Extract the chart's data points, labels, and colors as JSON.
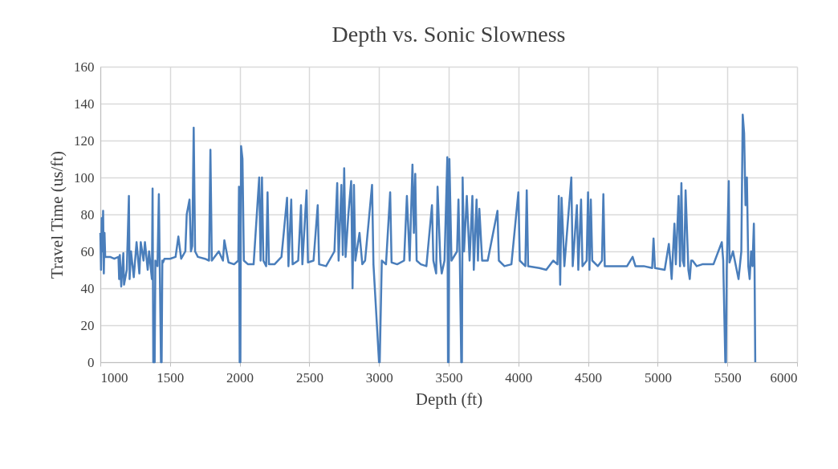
{
  "chart_data": {
    "type": "line",
    "title": "Depth vs. Sonic Slowness",
    "xlabel": "Depth (ft)",
    "ylabel": "Travel Time (us/ft)",
    "xlim": [
      1000,
      6000
    ],
    "xticks": [
      {
        "value": 1000,
        "label": "1000"
      },
      {
        "value": 1500,
        "label": "1500"
      },
      {
        "value": 2000,
        "label": "2000"
      },
      {
        "value": 2500,
        "label": "2500"
      },
      {
        "value": 3000,
        "label": "3000"
      },
      {
        "value": 3500,
        "label": "3500"
      },
      {
        "value": 4000,
        "label": "4000"
      },
      {
        "value": 4500,
        "label": "4500"
      },
      {
        "value": 5000,
        "label": "5000"
      },
      {
        "value": 5500,
        "label": "5500"
      },
      {
        "value": 6000,
        "label": "6000"
      }
    ],
    "ylim": [
      0,
      160
    ],
    "yticks": [
      0,
      20,
      40,
      60,
      80,
      100,
      120,
      140,
      160
    ],
    "grid": true,
    "legend": false,
    "marker": "none",
    "line_style": "solid",
    "series": [
      {
        "color": "#4a7ebb",
        "x": [
          1000,
          1005,
          1010,
          1015,
          1020,
          1025,
          1030,
          1035,
          1040,
          1070,
          1100,
          1130,
          1135,
          1140,
          1150,
          1165,
          1170,
          1190,
          1205,
          1210,
          1220,
          1240,
          1260,
          1280,
          1290,
          1310,
          1320,
          1340,
          1350,
          1370,
          1375,
          1380,
          1390,
          1395,
          1410,
          1420,
          1435,
          1440,
          1445,
          1450,
          1460,
          1500,
          1540,
          1560,
          1580,
          1610,
          1620,
          1640,
          1650,
          1660,
          1670,
          1680,
          1700,
          1750,
          1780,
          1790,
          1800,
          1850,
          1880,
          1890,
          1920,
          1960,
          1990,
          1995,
          2000,
          2005,
          2010,
          2020,
          2030,
          2060,
          2100,
          2140,
          2150,
          2160,
          2170,
          2190,
          2200,
          2210,
          2250,
          2300,
          2340,
          2350,
          2370,
          2380,
          2420,
          2440,
          2450,
          2480,
          2490,
          2530,
          2560,
          2570,
          2620,
          2680,
          2700,
          2710,
          2730,
          2740,
          2750,
          2760,
          2780,
          2800,
          2810,
          2820,
          2830,
          2860,
          2880,
          2900,
          2950,
          2960,
          3000,
          3005,
          3020,
          3050,
          3080,
          3090,
          3130,
          3180,
          3200,
          3220,
          3240,
          3250,
          3260,
          3270,
          3300,
          3340,
          3380,
          3390,
          3410,
          3420,
          3440,
          3450,
          3470,
          3490,
          3495,
          3500,
          3505,
          3520,
          3560,
          3570,
          3580,
          3590,
          3595,
          3600,
          3610,
          3630,
          3650,
          3670,
          3680,
          3700,
          3710,
          3720,
          3740,
          3780,
          3850,
          3860,
          3900,
          3950,
          4000,
          4010,
          4050,
          4060,
          4070,
          4150,
          4200,
          4250,
          4280,
          4290,
          4300,
          4310,
          4330,
          4380,
          4390,
          4420,
          4430,
          4450,
          4460,
          4490,
          4500,
          4510,
          4520,
          4530,
          4570,
          4600,
          4610,
          4620,
          4680,
          4780,
          4820,
          4840,
          4900,
          4960,
          4970,
          4980,
          5050,
          5080,
          5090,
          5100,
          5120,
          5130,
          5150,
          5160,
          5170,
          5180,
          5190,
          5200,
          5220,
          5230,
          5240,
          5250,
          5280,
          5320,
          5400,
          5460,
          5470,
          5485,
          5490,
          5495,
          5510,
          5515,
          5540,
          5580,
          5600,
          5610,
          5620,
          5630,
          5640,
          5650,
          5660,
          5670,
          5680,
          5690,
          5695,
          5700
        ],
        "values": [
          70,
          50,
          78,
          60,
          82,
          48,
          70,
          57,
          57,
          57,
          56,
          57,
          45,
          58,
          41,
          59,
          42,
          50,
          90,
          45,
          60,
          46,
          65,
          48,
          65,
          55,
          65,
          50,
          60,
          45,
          94,
          0,
          0,
          55,
          52,
          91,
          0,
          0,
          55,
          54,
          56,
          56,
          57,
          68,
          56,
          60,
          80,
          88,
          60,
          63,
          127,
          60,
          57,
          56,
          55,
          115,
          55,
          60,
          55,
          66,
          54,
          53,
          55,
          95,
          0,
          0,
          117,
          110,
          55,
          53,
          53,
          100,
          55,
          100,
          55,
          52,
          92,
          53,
          53,
          57,
          89,
          52,
          88,
          53,
          55,
          85,
          53,
          93,
          54,
          55,
          85,
          53,
          52,
          60,
          97,
          55,
          96,
          58,
          105,
          57,
          80,
          98,
          40,
          96,
          55,
          70,
          53,
          55,
          96,
          53,
          0,
          0,
          55,
          53,
          92,
          54,
          53,
          55,
          90,
          55,
          107,
          70,
          102,
          55,
          53,
          52,
          85,
          55,
          48,
          95,
          55,
          48,
          55,
          111,
          0,
          0,
          110,
          55,
          60,
          88,
          55,
          0,
          0,
          100,
          60,
          90,
          55,
          90,
          50,
          88,
          55,
          83,
          55,
          55,
          82,
          55,
          52,
          53,
          92,
          55,
          52,
          93,
          52,
          51,
          50,
          55,
          53,
          90,
          42,
          89,
          52,
          100,
          52,
          85,
          50,
          88,
          52,
          55,
          92,
          50,
          88,
          55,
          52,
          55,
          91,
          52,
          52,
          52,
          57,
          52,
          52,
          51,
          67,
          51,
          50,
          64,
          55,
          45,
          75,
          53,
          90,
          52,
          97,
          55,
          52,
          93,
          50,
          45,
          55,
          55,
          52,
          53,
          53,
          65,
          55,
          0,
          0,
          50,
          98,
          54,
          60,
          45,
          60,
          134,
          124,
          85,
          100,
          52,
          45,
          60,
          52,
          75,
          50,
          0
        ]
      }
    ]
  }
}
